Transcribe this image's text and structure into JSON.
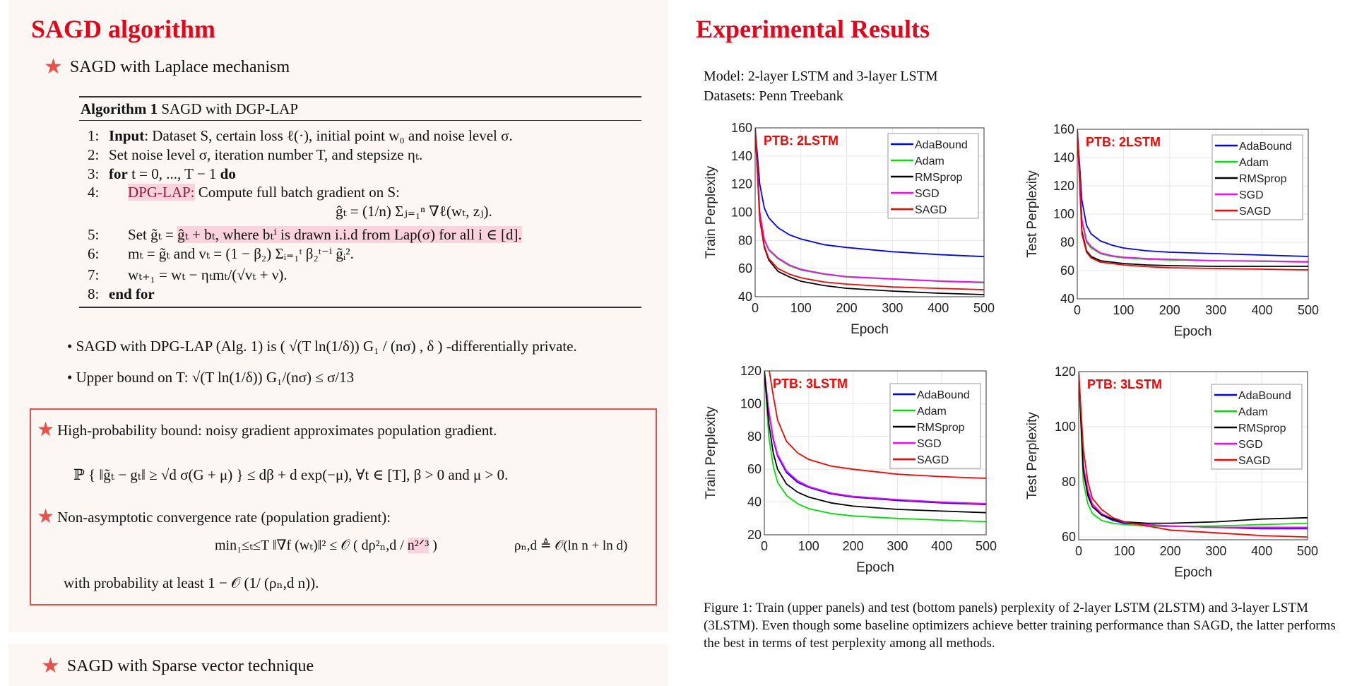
{
  "left": {
    "title": "SAGD algorithm",
    "subtitle": "SAGD with Laplace mechanism",
    "algorithm": {
      "header_bold": "Algorithm 1",
      "header_rest": " SAGD with DGP-LAP",
      "lines": [
        {
          "num": "1:",
          "bold": "Input",
          "text": ": Dataset S, certain loss ℓ(·), initial point w₀ and noise level σ."
        },
        {
          "num": "2:",
          "text": "Set noise level σ, iteration number T, and stepsize ηₜ."
        },
        {
          "num": "3:",
          "bold": "for",
          "text": " t = 0, ..., T − 1 ",
          "bold2": "do"
        },
        {
          "num": "4:",
          "highlight": "DPG-LAP:",
          "text": " Compute full batch gradient on S:"
        },
        {
          "formula": "ĝₜ = (1/n) Σⱼ₌₁ⁿ ∇ℓ(wₜ, zⱼ)."
        },
        {
          "num": "5:",
          "text": "Set g̃ₜ = ",
          "highlight": "ĝₜ + bₜ, where bₜⁱ is drawn i.i.d from Lap(σ) for all i ∈ [d]."
        },
        {
          "num": "6:",
          "text": "mₜ = g̃ₜ and vₜ = (1 − β₂) Σᵢ₌₁ᵗ β₂ᵗ⁻ⁱ g̃ᵢ²."
        },
        {
          "num": "7:",
          "text": "wₜ₊₁ = wₜ − ηₜmₜ/(√vₜ + ν)."
        },
        {
          "num": "8:",
          "bold": "end for"
        }
      ]
    },
    "bullets": [
      "SAGD with DPG-LAP (Alg. 1) is ( √(T ln(1/δ)) G₁ / (nσ) , δ ) -differentially private.",
      "Upper bound on T: √(T ln(1/δ)) G₁/(nσ) ≤ σ/13"
    ],
    "box": {
      "item1": "High-probability bound: noisy gradient approximates population gradient.",
      "formula1": "ℙ { ‖g̃ₜ − gₜ‖ ≥ √d σ(G + μ) } ≤ dβ + d exp(−μ),  ∀t ∈ [T],  β > 0  and μ > 0.",
      "item2": "Non-asymptotic convergence rate (population gradient):",
      "formula2_left": "min₁≤ₜ≤T ‖∇f (wₜ)‖² ≤ 𝒪 ( dρ²ₙ,d / ",
      "formula2_hl": "n²ᐟ³",
      "formula2_close": " )",
      "formula2_right": "ρₙ,d ≜ 𝒪(ln n + ln d)",
      "probability": "with probability at least 1 − 𝒪 (1/ (ρₙ,d n))."
    },
    "next_section": "SAGD with Sparse vector technique"
  },
  "right": {
    "title": "Experimental Results",
    "model": "Model: 2-layer LSTM and 3-layer LSTM",
    "datasets": "Datasets: Penn Treebank",
    "caption": "Figure 1: Train (upper panels) and test (bottom panels) perplexity of 2-layer LSTM (2LSTM) and 3-layer LSTM (3LSTM). Even though some baseline optimizers achieve better training performance than SAGD, the latter performs the best in terms of test perplexity among all methods."
  },
  "colors": {
    "AdaBound": "#0000ff",
    "Adam": "#00e000",
    "RMSprop": "#000000",
    "SGD": "#ff00ff",
    "SAGD": "#ff0000",
    "accent": "#e3061a"
  },
  "chart_data": [
    {
      "type": "line",
      "title": "PTB: 2LSTM",
      "xlabel": "Epoch",
      "ylabel": "Train Perplexity",
      "xlim": [
        0,
        500
      ],
      "ylim": [
        40,
        160
      ],
      "xticks": [
        0,
        100,
        200,
        300,
        400,
        500
      ],
      "yticks": [
        40,
        60,
        80,
        100,
        120,
        140,
        160
      ],
      "grid": true,
      "legend": "top-right",
      "x": [
        0,
        10,
        20,
        30,
        50,
        75,
        100,
        150,
        200,
        300,
        400,
        500
      ],
      "series": [
        {
          "name": "AdaBound",
          "values": [
            160,
            120,
            103,
            96,
            89,
            84,
            81,
            77,
            75,
            72,
            70,
            68.5
          ]
        },
        {
          "name": "Adam",
          "values": [
            160,
            100,
            80,
            73,
            67,
            62,
            59,
            56,
            54,
            52.5,
            51,
            50
          ]
        },
        {
          "name": "RMSprop",
          "values": [
            160,
            95,
            75,
            66,
            58,
            54,
            51,
            48,
            46,
            44,
            42.5,
            41.5
          ]
        },
        {
          "name": "SGD",
          "values": [
            160,
            100,
            80.5,
            73.5,
            67.5,
            62.5,
            59.5,
            56.3,
            54.3,
            52.7,
            51.2,
            50.3
          ]
        },
        {
          "name": "SAGD",
          "values": [
            160,
            96,
            76,
            67,
            60,
            56,
            53.5,
            50.5,
            49,
            47,
            46,
            45
          ]
        }
      ]
    },
    {
      "type": "line",
      "title": "PTB: 2LSTM",
      "xlabel": "Epoch",
      "ylabel": "Test Perplexity",
      "xlim": [
        0,
        500
      ],
      "ylim": [
        40,
        160
      ],
      "xticks": [
        0,
        100,
        200,
        300,
        400,
        500
      ],
      "yticks": [
        40,
        60,
        80,
        100,
        120,
        140,
        160
      ],
      "grid": true,
      "legend": "top-right",
      "x": [
        0,
        10,
        20,
        30,
        50,
        75,
        100,
        150,
        200,
        300,
        400,
        500
      ],
      "series": [
        {
          "name": "AdaBound",
          "values": [
            160,
            110,
            92,
            86,
            81,
            78,
            76,
            74,
            73,
            72,
            71,
            70
          ]
        },
        {
          "name": "Adam",
          "values": [
            160,
            95,
            80,
            76,
            72,
            70,
            69,
            68,
            67.5,
            67,
            66.5,
            66
          ]
        },
        {
          "name": "RMSprop",
          "values": [
            160,
            88,
            74,
            70,
            67,
            66,
            65,
            64,
            63.5,
            63,
            63,
            63
          ]
        },
        {
          "name": "SGD",
          "values": [
            160,
            96,
            81,
            77,
            72.5,
            70.5,
            69.5,
            68.5,
            68,
            67,
            66.8,
            66.3
          ]
        },
        {
          "name": "SAGD",
          "values": [
            160,
            86,
            73,
            69,
            66,
            65,
            64,
            62.8,
            62,
            61.5,
            61,
            60.5
          ]
        }
      ]
    },
    {
      "type": "line",
      "title": "PTB: 3LSTM",
      "xlabel": "Epoch",
      "ylabel": "Train Perplexity",
      "xlim": [
        0,
        500
      ],
      "ylim": [
        20,
        120
      ],
      "xticks": [
        0,
        100,
        200,
        300,
        400,
        500
      ],
      "yticks": [
        20,
        40,
        60,
        80,
        100,
        120
      ],
      "grid": true,
      "legend": "top-right",
      "x": [
        0,
        10,
        20,
        30,
        50,
        75,
        100,
        150,
        200,
        300,
        400,
        500
      ],
      "series": [
        {
          "name": "AdaBound",
          "values": [
            120,
            95,
            78,
            68,
            58,
            52,
            49,
            45,
            43,
            41,
            39.5,
            38.5
          ]
        },
        {
          "name": "Adam",
          "values": [
            120,
            80,
            62,
            52,
            44,
            39,
            36,
            33,
            31.5,
            30,
            29,
            28
          ]
        },
        {
          "name": "RMSprop",
          "values": [
            120,
            88,
            70,
            60,
            51,
            46,
            43,
            39.5,
            37.5,
            35.5,
            34.5,
            33.5
          ]
        },
        {
          "name": "SGD",
          "values": [
            120,
            96,
            79,
            69,
            59,
            53,
            49.5,
            45.5,
            43.5,
            41.5,
            40,
            39
          ]
        },
        {
          "name": "SAGD",
          "values": [
            125,
            122,
            105,
            90,
            77,
            70,
            66,
            62,
            60,
            57,
            55.5,
            54.5
          ]
        }
      ]
    },
    {
      "type": "line",
      "title": "PTB: 3LSTM",
      "xlabel": "Epoch",
      "ylabel": "Test Perplexity",
      "xlim": [
        0,
        500
      ],
      "ylim": [
        59,
        120
      ],
      "xticks": [
        0,
        100,
        200,
        300,
        400,
        500
      ],
      "yticks": [
        60,
        80,
        100,
        120
      ],
      "grid": true,
      "legend": "top-right",
      "x": [
        0,
        10,
        20,
        30,
        50,
        75,
        100,
        150,
        200,
        300,
        400,
        500
      ],
      "series": [
        {
          "name": "AdaBound",
          "values": [
            120,
            85,
            76,
            72,
            68,
            66,
            65,
            64.5,
            64,
            63.5,
            63,
            63
          ]
        },
        {
          "name": "Adam",
          "values": [
            120,
            80,
            72,
            68.5,
            66,
            65,
            64.5,
            64,
            63.8,
            64,
            64.5,
            65
          ]
        },
        {
          "name": "RMSprop",
          "values": [
            120,
            84,
            75,
            71,
            68,
            66.5,
            65.5,
            65,
            65,
            65.5,
            66.5,
            67
          ]
        },
        {
          "name": "SGD",
          "values": [
            120,
            86,
            77,
            72,
            68.5,
            66.5,
            65.5,
            64.5,
            64,
            63.5,
            63.5,
            63.5
          ]
        },
        {
          "name": "SAGD",
          "values": [
            120,
            92,
            80,
            74,
            70,
            67,
            65.5,
            64,
            62.5,
            61.5,
            60.5,
            60
          ]
        }
      ]
    }
  ]
}
